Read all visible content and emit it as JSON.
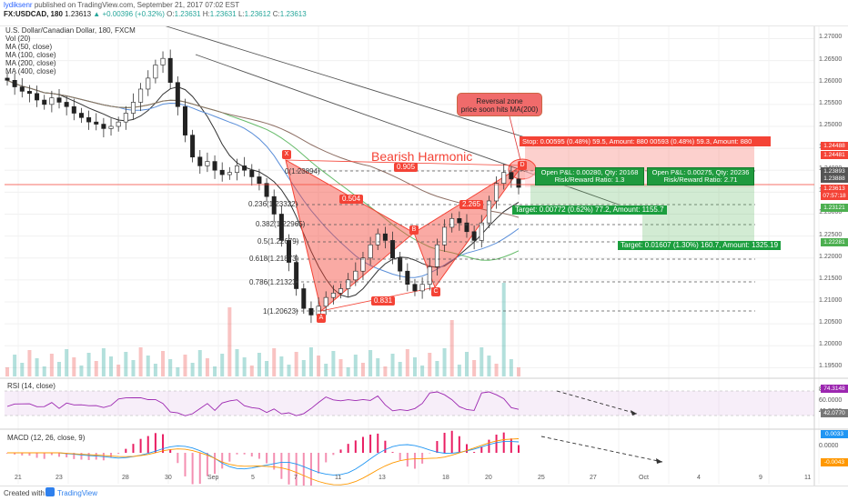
{
  "header": {
    "user": "lydiksenr",
    "published": "published on TradingView.com, September 21, 2017 07:02 EST",
    "symbol": "FX:USDCAD, 180",
    "last": "1.23613",
    "change": "▲ +0.00396 (+0.32%)",
    "o_label": "O:",
    "o_value": "1.23631",
    "h_label": "H:",
    "h_value": "1.23631",
    "l_label": "L:",
    "l_value": "1.23612",
    "c_label": "C:",
    "c_value": "1.23613"
  },
  "legend": {
    "name": "U.S. Dollar/Canadian Dollar, 180, FXCM",
    "vol": "Vol (20)",
    "ma1": "MA (50, close)",
    "ma2": "MA (100, close)",
    "ma3": "MA (200, close)",
    "ma4": "MA (400, close)"
  },
  "annotations": {
    "callout": "Reversal zone\nprice soon hits MA(200)",
    "callout_l1": "Reversal zone",
    "callout_l2": "price soon hits MA(200)",
    "pattern": "Bearish Harmonic",
    "xd_ratio": "0.905",
    "ab_ratio": "0.504",
    "bc_ratio": "0.831",
    "cd_ratio": "2.265",
    "pts": [
      "X",
      "A",
      "B",
      "C",
      "D"
    ]
  },
  "fib_levels": [
    {
      "label": "0(1.23894)"
    },
    {
      "label": "0.236(1.23322)"
    },
    {
      "label": "0.382(1.22965)"
    },
    {
      "label": "0.5(1.22679)"
    },
    {
      "label": "0.618(1.21873)"
    },
    {
      "label": "0.786(1.21323)"
    },
    {
      "label": "1(1.20623)"
    }
  ],
  "trade": {
    "stop": "Stop: 0.00595 (0.48%) 59.5, Amount: 880   00593 (0.48%) 59.3, Amount: 880",
    "pnl1_l1": "Open P&L: 0.00280, Qty: 20168",
    "pnl1_l2": "Risk/Reward Ratio: 1.3",
    "pnl2_l1": "Open P&L: 0.00275, Qty: 20236",
    "pnl2_l2": "Risk/Reward Ratio: 2.71",
    "target1": "Target: 0.00772 (0.62%) 77.2, Amount: 1155.7",
    "target2": "Target: 0.01607 (1.30%) 160.7, Amount: 1325.19"
  },
  "price_axis": {
    "ticks": [
      "1.27000",
      "1.26500",
      "1.26000",
      "1.25500",
      "1.25000",
      "1.24500",
      "1.24000",
      "1.23500",
      "1.23000",
      "1.22500",
      "1.22000",
      "1.21500",
      "1.21000",
      "1.20500",
      "1.20000",
      "1.19500"
    ],
    "tags": [
      {
        "text": "1.24488",
        "color": "#f44336"
      },
      {
        "text": "1.24481",
        "color": "#f44336"
      },
      {
        "text": "1.23893",
        "color": "#555555"
      },
      {
        "text": "1.23888",
        "color": "#555555"
      },
      {
        "text": "1.23613",
        "color": "#f44336"
      },
      {
        "text": "07:57:18",
        "color": "#f44336"
      },
      {
        "text": "1.23121",
        "color": "#4caf50"
      },
      {
        "text": "1.22281",
        "color": "#4caf50"
      }
    ]
  },
  "time_axis": [
    "21",
    "23",
    "28",
    "30",
    "Sep",
    "5",
    "7",
    "11",
    "13",
    "18",
    "20",
    "25",
    "27",
    "Oct",
    "4",
    "9",
    "11"
  ],
  "rsi": {
    "label": "RSI (14, close)",
    "ticks": [
      "80.0000",
      "60.0000",
      "40.0000"
    ],
    "value_tag": "74.3148",
    "ma_tag": "42.0770"
  },
  "macd": {
    "label": "MACD (12, 26, close, 9)",
    "ticks": [
      "0.0000"
    ],
    "tag1": "0.0033",
    "tag2": "-0.0043"
  },
  "footer": {
    "created": "Created with",
    "brand": "TradingView"
  },
  "chart_data": {
    "type": "candlestick",
    "title": "U.S. Dollar/Canadian Dollar, 180, FXCM",
    "ylim": [
      1.193,
      1.273
    ],
    "pattern_points": {
      "X": 1.2389,
      "A": 1.2062,
      "B": 1.2262,
      "C": 1.2112,
      "D": 1.2395
    },
    "closes": [
      1.2605,
      1.259,
      1.258,
      1.2575,
      1.256,
      1.255,
      1.2565,
      1.2555,
      1.2545,
      1.253,
      1.252,
      1.251,
      1.2505,
      1.2495,
      1.25,
      1.251,
      1.253,
      1.2555,
      1.2585,
      1.261,
      1.264,
      1.2655,
      1.26,
      1.2545,
      1.248,
      1.243,
      1.241,
      1.242,
      1.24,
      1.239,
      1.2395,
      1.241,
      1.24,
      1.2385,
      1.237,
      1.234,
      1.23,
      1.224,
      1.219,
      1.213,
      1.2085,
      1.207,
      1.209,
      1.211,
      1.212,
      1.213,
      1.215,
      1.217,
      1.22,
      1.223,
      1.2255,
      1.224,
      1.22,
      1.217,
      1.214,
      1.2125,
      1.214,
      1.218,
      1.223,
      1.227,
      1.229,
      1.228,
      1.226,
      1.224,
      1.228,
      1.233,
      1.237,
      1.2395,
      1.238,
      1.2361
    ]
  }
}
